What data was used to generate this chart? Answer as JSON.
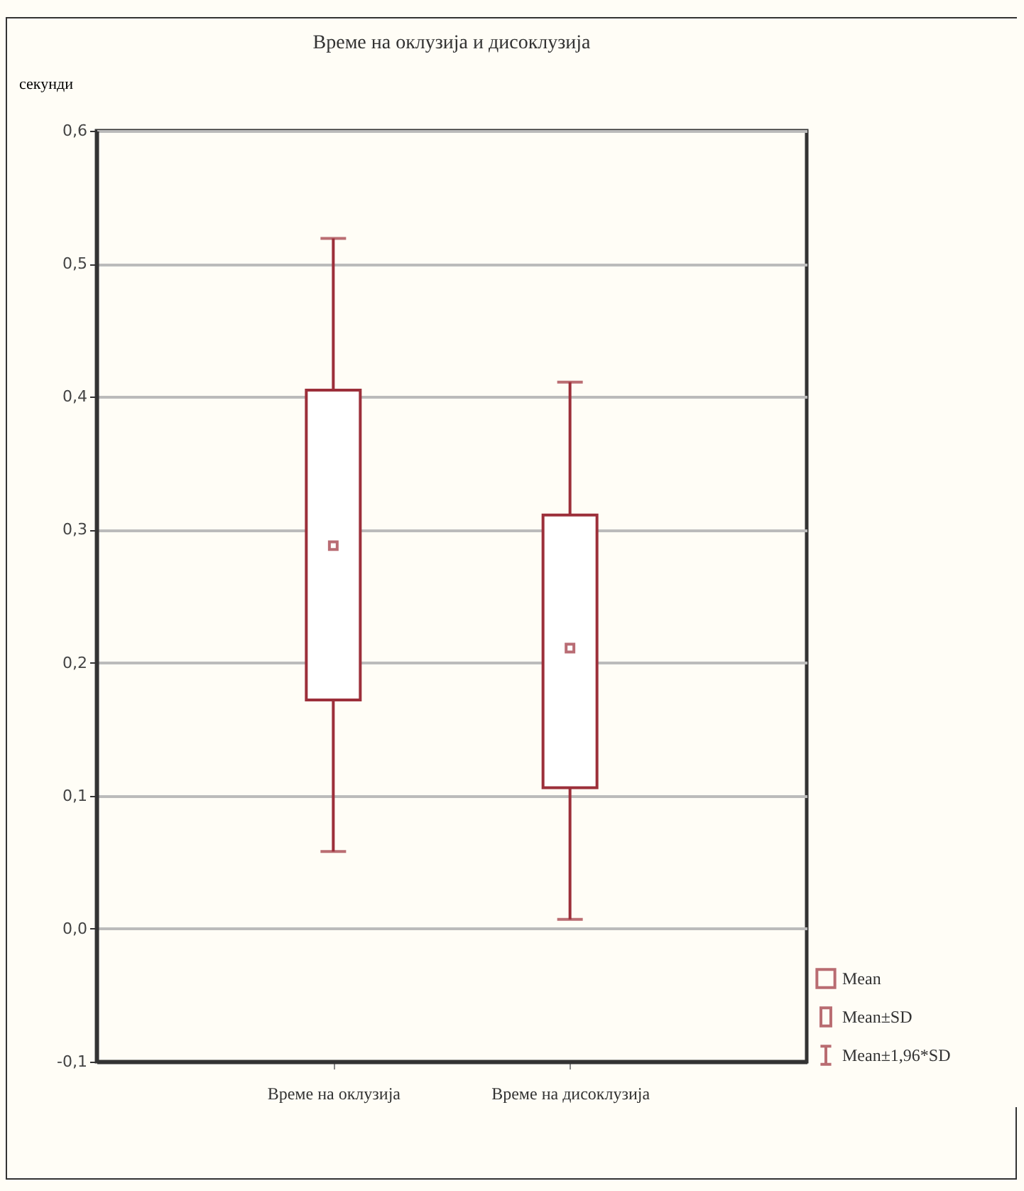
{
  "chart_data": {
    "type": "box",
    "title": "Време на оклузија и дисоклузија",
    "ylabel": "секунди",
    "categories": [
      "Време на оклузија",
      "Време на дисоклузија"
    ],
    "boxes": [
      {
        "low": 0.058,
        "q1": 0.172,
        "median": 0.288,
        "q3": 0.405,
        "high": 0.519
      },
      {
        "low": 0.007,
        "q1": 0.106,
        "median": 0.211,
        "q3": 0.311,
        "high": 0.411
      }
    ],
    "color": "#9c2f3a",
    "ylim": [
      -0.1,
      0.6
    ],
    "yticks": [
      {
        "value": -0.1,
        "label": "-0,1"
      },
      {
        "value": 0,
        "label": "0,0"
      },
      {
        "value": 0.1,
        "label": "0,1"
      },
      {
        "value": 0.2,
        "label": "0,2"
      },
      {
        "value": 0.3,
        "label": "0,3"
      },
      {
        "value": 0.4,
        "label": "0,4"
      },
      {
        "value": 0.5,
        "label": "0,5"
      },
      {
        "value": 0.6,
        "label": "0,6"
      }
    ],
    "grid": "y",
    "annotations": [
      "Mean",
      "Mean±SD",
      "Mean±1,96*SD"
    ]
  }
}
